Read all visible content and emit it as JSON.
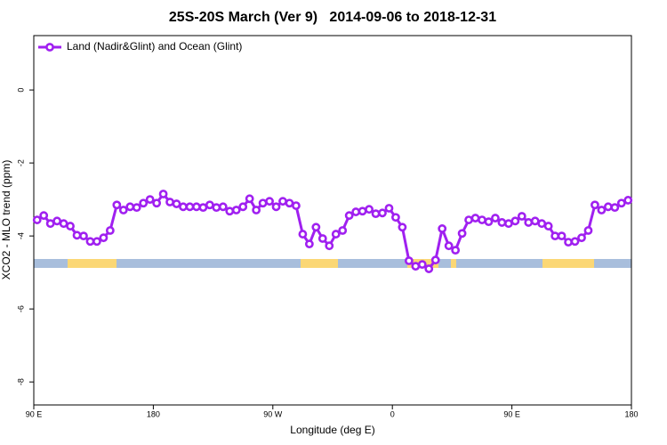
{
  "chart_data": {
    "type": "line",
    "title": "25S-20S March (Ver 9)   2014-09-06 to 2018-12-31",
    "x_label": "Longitude (deg E)",
    "y_label": "XCO2 - MLO trend (ppm)",
    "x": [
      92.5,
      97.5,
      102.5,
      107.5,
      112.5,
      117.5,
      122.5,
      127.5,
      132.5,
      137.5,
      142.5,
      147.5,
      152.5,
      157.5,
      162.5,
      167.5,
      172.5,
      177.5,
      182.5,
      187.5,
      192.5,
      197.5,
      202.5,
      207.5,
      212.5,
      217.5,
      222.5,
      227.5,
      232.5,
      237.5,
      242.5,
      247.5,
      252.5,
      257.5,
      262.5,
      267.5,
      272.5,
      277.5,
      282.5,
      287.5,
      292.5,
      297.5,
      302.5,
      307.5,
      312.5,
      317.5,
      322.5,
      327.5,
      332.5,
      337.5,
      342.5,
      347.5,
      352.5,
      357.5,
      362.5,
      367.5,
      372.5,
      377.5,
      382.5,
      387.5,
      392.5,
      397.5,
      402.5,
      407.5,
      412.5,
      417.5,
      422.5,
      427.5,
      432.5,
      437.5,
      442.5,
      447.5,
      452.5,
      457.5,
      462.5,
      467.5,
      472.5,
      477.5,
      482.5,
      487.5,
      492.5,
      497.5,
      502.5,
      507.5,
      512.5,
      517.5,
      522.5,
      527.5,
      532.5,
      537.5
    ],
    "series": [
      {
        "name": "Land (Nadir&Glint) and Ocean (Glint)",
        "color": "#a020f0",
        "values": [
          -3.56,
          -3.44,
          -3.66,
          -3.59,
          -3.66,
          -3.73,
          -3.98,
          -4.0,
          -4.15,
          -4.15,
          -4.05,
          -3.85,
          -3.15,
          -3.29,
          -3.2,
          -3.22,
          -3.1,
          -3.0,
          -3.1,
          -2.85,
          -3.07,
          -3.12,
          -3.2,
          -3.2,
          -3.2,
          -3.22,
          -3.15,
          -3.22,
          -3.2,
          -3.32,
          -3.29,
          -3.2,
          -2.98,
          -3.29,
          -3.1,
          -3.05,
          -3.2,
          -3.05,
          -3.1,
          -3.17,
          -3.95,
          -4.22,
          -3.76,
          -4.07,
          -4.27,
          -3.95,
          -3.85,
          -3.44,
          -3.34,
          -3.32,
          -3.27,
          -3.39,
          -3.37,
          -3.24,
          -3.49,
          -3.76,
          -4.68,
          -4.83,
          -4.78,
          -4.9,
          -4.66,
          -3.8,
          -4.27,
          -4.39,
          -3.93,
          -3.56,
          -3.51,
          -3.56,
          -3.61,
          -3.51,
          -3.63,
          -3.66,
          -3.59,
          -3.46,
          -3.63,
          -3.59,
          -3.66,
          -3.73,
          -4.0,
          -4.0,
          -4.17,
          -4.15,
          -4.05,
          -3.85,
          -3.15,
          -3.29,
          -3.2,
          -3.22,
          -3.1,
          -3.02
        ]
      }
    ],
    "xlim": [
      90,
      540
    ],
    "xticks": [
      {
        "value": 90,
        "label": "90 E"
      },
      180,
      {
        "value": 270,
        "label": "90 W"
      },
      {
        "value": 360,
        "label": "0"
      },
      {
        "value": 450,
        "label": "90 E"
      },
      {
        "value": 540,
        "label": "180"
      }
    ],
    "ylim": [
      -8.63,
      1.49
    ],
    "yticks": [
      0,
      -2,
      -4,
      -6,
      -8
    ],
    "legend": "top-left"
  }
}
